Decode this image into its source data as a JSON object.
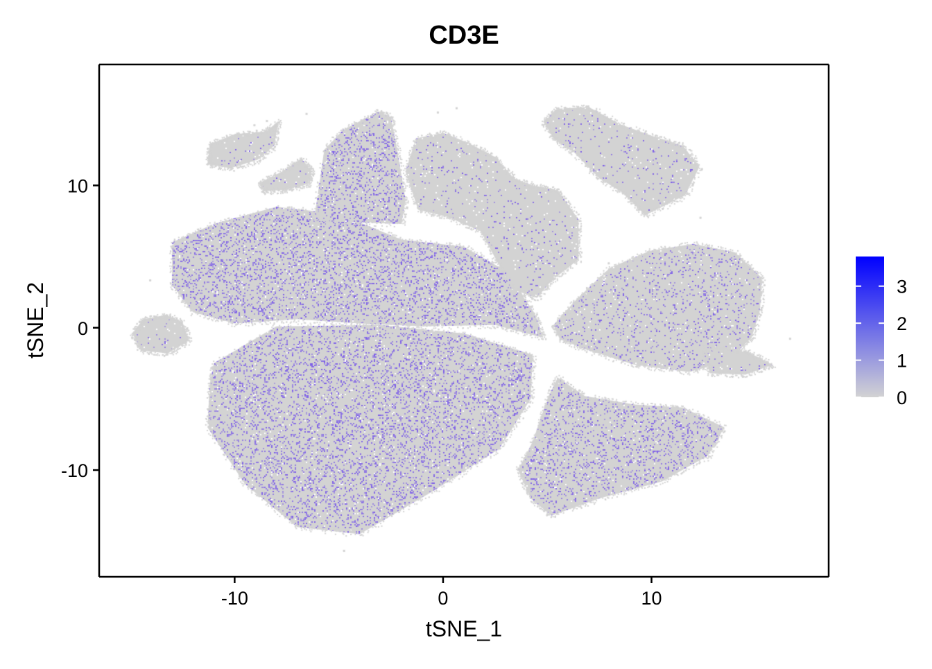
{
  "chart_data": {
    "type": "scatter",
    "title": "CD3E",
    "xlabel": "tSNE_1",
    "ylabel": "tSNE_2",
    "xlim": [
      -16.5,
      18.5
    ],
    "ylim": [
      -17.5,
      18.5
    ],
    "x_ticks": [
      -10,
      0,
      10
    ],
    "y_ticks": [
      -10,
      0,
      10
    ],
    "x_tick_labels": [
      "-10",
      "0",
      "10"
    ],
    "y_tick_labels": [
      "-10",
      "0",
      "10"
    ],
    "grid": false,
    "legend": {
      "placement": "right",
      "type": "colorbar",
      "range": [
        0,
        3.8
      ],
      "ticks": [
        0,
        1,
        2,
        3
      ],
      "tick_labels": [
        "0",
        "1",
        "2",
        "3"
      ],
      "low_color": "#d3d3d3",
      "high_color": "#0000ff"
    },
    "point_color_background": "#d3d3d3",
    "point_color_expressed": "#7b5ce8",
    "clusters": [
      {
        "id": "central-left",
        "center": [
          -10.5,
          4.5
        ],
        "polygon": [
          [
            -13,
            6
          ],
          [
            -11,
            7.3
          ],
          [
            -8,
            8.5
          ],
          [
            -5,
            8
          ],
          [
            -2,
            6.2
          ],
          [
            1,
            5.7
          ],
          [
            3,
            4
          ],
          [
            4.4,
            1
          ],
          [
            4.8,
            -0.7
          ],
          [
            2.5,
            0.2
          ],
          [
            -1,
            0.1
          ],
          [
            -4,
            0.3
          ],
          [
            -7,
            0.6
          ],
          [
            -10,
            0.3
          ],
          [
            -12,
            1.1
          ],
          [
            -13,
            3
          ]
        ],
        "expr_rate": 0.32
      },
      {
        "id": "upper-spike",
        "center": [
          -4,
          10
        ],
        "polygon": [
          [
            -6.2,
            7.5
          ],
          [
            -5.7,
            12.5
          ],
          [
            -4.8,
            13.9
          ],
          [
            -3.1,
            15.2
          ],
          [
            -2.5,
            14.8
          ],
          [
            -2.2,
            12.5
          ],
          [
            -1.8,
            9
          ],
          [
            -2,
            7.3
          ]
        ],
        "expr_rate": 0.32
      },
      {
        "id": "bottom-big",
        "center": [
          -5,
          -7
        ],
        "polygon": [
          [
            -11,
            -2.5
          ],
          [
            -8,
            0.1
          ],
          [
            -3,
            0.2
          ],
          [
            1,
            -0.4
          ],
          [
            4.3,
            -1.9
          ],
          [
            4.2,
            -5
          ],
          [
            2.7,
            -8.5
          ],
          [
            -0.5,
            -11.5
          ],
          [
            -4,
            -14.5
          ],
          [
            -7,
            -14
          ],
          [
            -9.5,
            -11
          ],
          [
            -11.3,
            -7
          ],
          [
            -11.2,
            -4
          ]
        ],
        "expr_rate": 0.3
      },
      {
        "id": "bottom-right",
        "center": [
          9,
          -9
        ],
        "polygon": [
          [
            5.5,
            -3.5
          ],
          [
            6.8,
            -4.8
          ],
          [
            9.2,
            -5.4
          ],
          [
            11.5,
            -5.6
          ],
          [
            13.5,
            -7
          ],
          [
            12.7,
            -9
          ],
          [
            10.5,
            -10.8
          ],
          [
            7.5,
            -12
          ],
          [
            5.2,
            -13.2
          ],
          [
            4.2,
            -12
          ],
          [
            3.6,
            -10
          ],
          [
            4.3,
            -8
          ],
          [
            5,
            -5
          ]
        ],
        "expr_rate": 0.26
      },
      {
        "id": "upper-middle",
        "center": [
          3.5,
          7.5
        ],
        "polygon": [
          [
            -1.8,
            11
          ],
          [
            -1.3,
            13.3
          ],
          [
            0,
            13.7
          ],
          [
            1.2,
            13
          ],
          [
            2.5,
            12
          ],
          [
            3.4,
            10.5
          ],
          [
            4.3,
            10
          ],
          [
            5.5,
            9.7
          ],
          [
            6.5,
            7.6
          ],
          [
            6.5,
            4.8
          ],
          [
            5.2,
            3.3
          ],
          [
            4.5,
            2.1
          ],
          [
            3.3,
            2.7
          ],
          [
            2.5,
            4.9
          ],
          [
            1.8,
            6.8
          ],
          [
            0.2,
            7.8
          ],
          [
            -1.2,
            8.3
          ]
        ],
        "expr_rate": 0.07
      },
      {
        "id": "top-right",
        "center": [
          9.5,
          11
        ],
        "polygon": [
          [
            5.5,
            15.4
          ],
          [
            7,
            15.5
          ],
          [
            8.5,
            14.3
          ],
          [
            10,
            13.5
          ],
          [
            11.5,
            12.8
          ],
          [
            12.3,
            11.3
          ],
          [
            11.6,
            9.3
          ],
          [
            9.7,
            7.9
          ],
          [
            8.6,
            9.5
          ],
          [
            7.5,
            10.5
          ],
          [
            6.3,
            12.3
          ],
          [
            5.3,
            13.3
          ],
          [
            4.8,
            14.5
          ]
        ],
        "expr_rate": 0.07
      },
      {
        "id": "right",
        "center": [
          11,
          1.5
        ],
        "polygon": [
          [
            5.3,
            0.2
          ],
          [
            6.4,
            2
          ],
          [
            8,
            4.2
          ],
          [
            9.9,
            5.4
          ],
          [
            12,
            5.9
          ],
          [
            14,
            5.3
          ],
          [
            15.3,
            3.5
          ],
          [
            15.2,
            1.2
          ],
          [
            14.8,
            -0.7
          ],
          [
            13.6,
            -2.4
          ],
          [
            11.8,
            -3.1
          ],
          [
            9.2,
            -2.6
          ],
          [
            7,
            -1.6
          ],
          [
            5.6,
            -0.8
          ]
        ],
        "expr_rate": 0.16
      },
      {
        "id": "far-left",
        "center": [
          -14,
          -0.5
        ],
        "polygon": [
          [
            -14.9,
            -0.4
          ],
          [
            -14.4,
            0.6
          ],
          [
            -13.3,
            0.9
          ],
          [
            -12.5,
            0.4
          ],
          [
            -12.2,
            -0.9
          ],
          [
            -13.2,
            -1.8
          ],
          [
            -14.5,
            -1.6
          ]
        ],
        "expr_rate": 0.05
      },
      {
        "id": "top-left-1",
        "center": [
          -10.5,
          12.5
        ],
        "polygon": [
          [
            -11.2,
            12.9
          ],
          [
            -10,
            13.6
          ],
          [
            -8.5,
            13.8
          ],
          [
            -7.9,
            14.5
          ],
          [
            -8.1,
            12.8
          ],
          [
            -8.9,
            11.8
          ],
          [
            -10.2,
            11.2
          ],
          [
            -11.3,
            11.5
          ]
        ],
        "expr_rate": 0.05
      },
      {
        "id": "top-left-2",
        "center": [
          -7.5,
          10.5
        ],
        "polygon": [
          [
            -8.8,
            10.2
          ],
          [
            -7.7,
            11
          ],
          [
            -6.8,
            11.9
          ],
          [
            -6.3,
            11
          ],
          [
            -6.5,
            10.1
          ],
          [
            -7.5,
            9.7
          ],
          [
            -8.6,
            9.6
          ]
        ],
        "expr_rate": 0.06
      },
      {
        "id": "right-tail",
        "center": [
          13.8,
          -2.5
        ],
        "polygon": [
          [
            12.5,
            -1.4
          ],
          [
            14.5,
            -1.6
          ],
          [
            15.8,
            -2.6
          ],
          [
            14.5,
            -3.3
          ],
          [
            12.8,
            -3.2
          ]
        ],
        "expr_rate": 0.05
      }
    ]
  },
  "colors": {
    "axis": "#000000",
    "text": "#000000",
    "background": "#ffffff"
  }
}
